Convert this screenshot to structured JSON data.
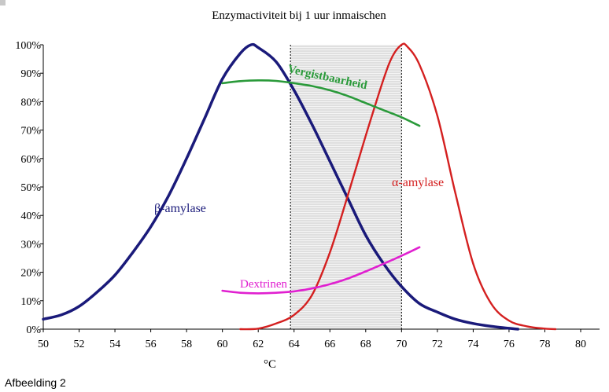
{
  "caption": "Afbeelding 2",
  "chart_data": {
    "type": "line",
    "title": "Enzymactiviteit bij 1 uur inmaischen",
    "xlabel": "°C",
    "ylabel": "",
    "xlim": [
      50,
      80
    ],
    "ylim": [
      0,
      100
    ],
    "x_ticks": [
      50,
      52,
      54,
      56,
      58,
      60,
      62,
      64,
      66,
      68,
      70,
      72,
      74,
      76,
      78,
      80
    ],
    "y_ticks": [
      "0%",
      "10%",
      "20%",
      "30%",
      "40%",
      "50%",
      "60%",
      "70%",
      "80%",
      "90%",
      "100%"
    ],
    "shaded_region": [
      63.8,
      70
    ],
    "series": [
      {
        "name": "β-amylase",
        "color": "#1a1a7a",
        "points": [
          [
            50,
            3.5
          ],
          [
            51,
            5
          ],
          [
            52,
            8
          ],
          [
            53,
            13
          ],
          [
            54,
            19
          ],
          [
            55,
            27
          ],
          [
            56,
            36
          ],
          [
            57,
            47
          ],
          [
            58,
            60
          ],
          [
            59,
            74
          ],
          [
            60,
            88
          ],
          [
            61,
            97
          ],
          [
            61.6,
            100
          ],
          [
            62,
            99
          ],
          [
            63,
            94
          ],
          [
            64,
            84
          ],
          [
            65,
            72
          ],
          [
            66,
            59
          ],
          [
            67,
            46
          ],
          [
            68,
            33
          ],
          [
            69,
            23
          ],
          [
            70,
            15
          ],
          [
            71,
            9
          ],
          [
            72,
            6
          ],
          [
            73,
            3.5
          ],
          [
            74,
            2
          ],
          [
            75,
            1
          ],
          [
            76,
            0.3
          ],
          [
            76.5,
            0
          ]
        ]
      },
      {
        "name": "α-amylase",
        "color": "#d42020",
        "points": [
          [
            61,
            0
          ],
          [
            62,
            0.2
          ],
          [
            63,
            2
          ],
          [
            64,
            5
          ],
          [
            65,
            12
          ],
          [
            66,
            27
          ],
          [
            67,
            47
          ],
          [
            68,
            68
          ],
          [
            69,
            88
          ],
          [
            69.5,
            96
          ],
          [
            70,
            100
          ],
          [
            70.3,
            99.5
          ],
          [
            71,
            93
          ],
          [
            72,
            75
          ],
          [
            73,
            48
          ],
          [
            74,
            23
          ],
          [
            75,
            9
          ],
          [
            76,
            3
          ],
          [
            77,
            1
          ],
          [
            78,
            0.2
          ],
          [
            78.6,
            0
          ]
        ]
      },
      {
        "name": "Vergistbaarheid",
        "color": "#2a9a3a",
        "points": [
          [
            60,
            86.5
          ],
          [
            61,
            87.2
          ],
          [
            62,
            87.5
          ],
          [
            63,
            87.3
          ],
          [
            64,
            86.5
          ],
          [
            65,
            85.5
          ],
          [
            66,
            84
          ],
          [
            67,
            82
          ],
          [
            68,
            79.5
          ],
          [
            69,
            77
          ],
          [
            70,
            74.5
          ],
          [
            71,
            71.5
          ]
        ]
      },
      {
        "name": "Dextrinen",
        "color": "#e020d0",
        "points": [
          [
            60,
            13.5
          ],
          [
            61,
            12.8
          ],
          [
            62,
            12.6
          ],
          [
            63,
            12.8
          ],
          [
            64,
            13.3
          ],
          [
            65,
            14.3
          ],
          [
            66,
            15.8
          ],
          [
            67,
            17.8
          ],
          [
            68,
            20.3
          ],
          [
            69,
            23
          ],
          [
            70,
            25.8
          ],
          [
            71,
            28.8
          ]
        ]
      }
    ]
  }
}
